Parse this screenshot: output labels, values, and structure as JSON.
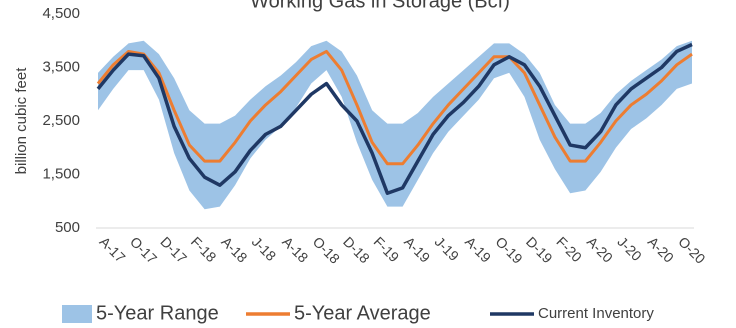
{
  "chart_data": {
    "type": "range-line",
    "title": "Working Gas in Storage (Bcf)",
    "y_label": "billion cubic feet",
    "categories": [
      null,
      "A-17",
      null,
      "O-17",
      null,
      "D-17",
      null,
      "F-18",
      null,
      "A-18",
      null,
      "J-18",
      null,
      "A-18",
      null,
      "O-18",
      null,
      "D-18",
      null,
      "F-19",
      null,
      "A-19",
      null,
      "J-19",
      null,
      "A-19",
      null,
      "O-19",
      null,
      "D-19",
      null,
      "F-20",
      null,
      "A-20",
      null,
      "J-20",
      null,
      "A-20",
      null,
      "O-20"
    ],
    "ylim": [
      500,
      4500
    ],
    "yticks": [
      500,
      {
        "value": 1500,
        "label": "1,500"
      },
      {
        "value": 2500,
        "label": "2,500"
      },
      {
        "value": 3500,
        "label": "3,500"
      },
      {
        "value": 4500,
        "label": "4,500"
      }
    ],
    "grid": false,
    "legend": "bottom",
    "range": {
      "name": "5-Year Range",
      "color": "#9dc3e6",
      "low": [
        2700,
        3100,
        3450,
        3450,
        2900,
        1900,
        1200,
        850,
        900,
        1300,
        1800,
        2150,
        2400,
        2750,
        3200,
        3450,
        2950,
        2100,
        1400,
        900,
        900,
        1400,
        1900,
        2300,
        2600,
        2900,
        3300,
        3400,
        2950,
        2150,
        1600,
        1150,
        1200,
        1550,
        2000,
        2350,
        2550,
        2800,
        3100,
        3200
      ],
      "high": [
        3400,
        3700,
        3950,
        4000,
        3750,
        3300,
        2700,
        2450,
        2450,
        2600,
        2900,
        3150,
        3350,
        3600,
        3900,
        4000,
        3800,
        3350,
        2700,
        2450,
        2450,
        2650,
        2950,
        3200,
        3450,
        3700,
        3950,
        3950,
        3750,
        3400,
        2800,
        2450,
        2450,
        2650,
        3000,
        3250,
        3450,
        3650,
        3900,
        4000
      ]
    },
    "series": [
      {
        "name": "5-Year Average",
        "color": "#ed7d31",
        "values": [
          3200,
          3550,
          3800,
          3750,
          3400,
          2700,
          2050,
          1750,
          1750,
          2100,
          2500,
          2800,
          3050,
          3350,
          3650,
          3800,
          3450,
          2800,
          2100,
          1700,
          1700,
          2050,
          2450,
          2800,
          3100,
          3400,
          3700,
          3700,
          3400,
          2800,
          2200,
          1750,
          1750,
          2100,
          2500,
          2800,
          3000,
          3250,
          3550,
          3750
        ]
      },
      {
        "name": "Current Inventory",
        "color": "#1f3864",
        "values": [
          3100,
          3450,
          3750,
          3720,
          3300,
          2400,
          1800,
          1450,
          1300,
          1550,
          1950,
          2250,
          2400,
          2700,
          3000,
          3200,
          2800,
          2500,
          1900,
          1150,
          1250,
          1750,
          2250,
          2600,
          2850,
          3150,
          3550,
          3700,
          3550,
          3150,
          2600,
          2050,
          2000,
          2300,
          2800,
          3100,
          3300,
          3500,
          3800,
          3930
        ]
      }
    ]
  }
}
